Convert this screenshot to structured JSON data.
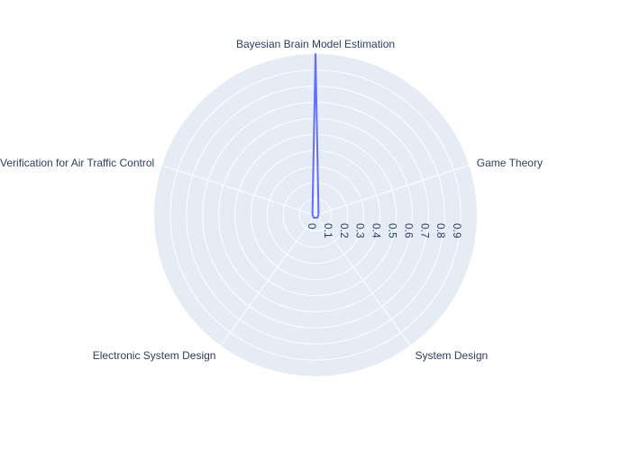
{
  "chart_data": {
    "type": "radar",
    "categories": [
      "Bayesian Brain Model Estimation",
      "Game Theory",
      "System Design",
      "Electronic System Design",
      "Formal Verification for Air Traffic Control"
    ],
    "values": [
      1.0,
      0.02,
      0.02,
      0.02,
      0.02
    ],
    "radial_range": [
      0,
      1.0
    ],
    "radial_ticks": [
      0,
      0.1,
      0.2,
      0.3,
      0.4,
      0.5,
      0.6,
      0.7,
      0.8,
      0.9
    ],
    "radial_tick_labels": [
      "0",
      "0.1",
      "0.2",
      "0.3",
      "0.4",
      "0.5",
      "0.6",
      "0.7",
      "0.8",
      "0.9"
    ],
    "grid": true,
    "colors": {
      "polar_background": "#e5ecf6",
      "grid": "#ffffff",
      "series_line": "#636efa",
      "text": "#2a3f5f"
    }
  }
}
